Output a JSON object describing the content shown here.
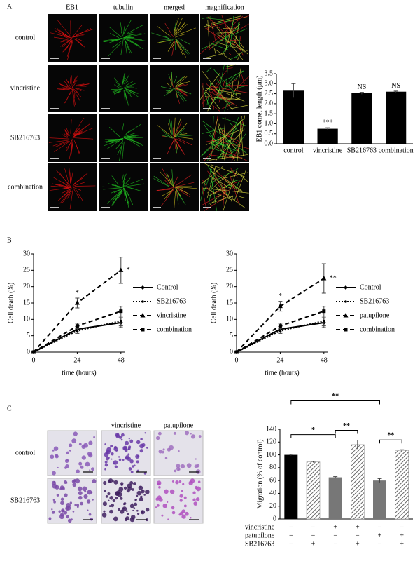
{
  "panel_labels": [
    "A",
    "B",
    "C"
  ],
  "panel_a_images": {
    "columns": [
      "EB1",
      "tubulin",
      "merged",
      "magnification"
    ],
    "rows": [
      "control",
      "vincristine",
      "SB216763",
      "combination"
    ]
  },
  "panel_c_images": {
    "columns": [
      "vincristine",
      "patupilone"
    ],
    "rows": [
      "control",
      "SB216763"
    ]
  },
  "chart_data": [
    {
      "type": "bar",
      "ylabel": "EB1 comet length (µm)",
      "categories": [
        "control",
        "vincristine",
        "SB216763",
        "combination"
      ],
      "values": [
        2.65,
        0.75,
        2.52,
        2.6
      ],
      "errors": [
        0.35,
        0.05,
        0.05,
        0.03
      ],
      "value_annotations": [
        null,
        "***",
        "NS",
        "NS"
      ],
      "color": "#000000",
      "ylim": [
        0,
        3.5
      ],
      "yticks": [
        {
          "value": 0,
          "label": "0.0"
        },
        {
          "value": 0.5,
          "label": "0.5"
        },
        {
          "value": 1,
          "label": "1.0"
        },
        {
          "value": 1.5,
          "label": "1.5"
        },
        {
          "value": 2,
          "label": "2.0"
        },
        {
          "value": 2.5,
          "label": "2.5"
        },
        {
          "value": 3,
          "label": "3.0"
        },
        {
          "value": 3.5,
          "label": "3.5"
        }
      ]
    },
    {
      "type": "line",
      "xlabel": "time (hours)",
      "ylabel": "Cell death (%)",
      "x": [
        0,
        24,
        48
      ],
      "xlim": [
        0,
        50
      ],
      "xticks": [
        0,
        24,
        48
      ],
      "ylim": [
        0,
        30
      ],
      "yticks": [
        0,
        5,
        10,
        15,
        20,
        25,
        30
      ],
      "series": [
        {
          "name": "Control",
          "color": "#000000",
          "dash": "solid",
          "marker": "diamond",
          "values": [
            0,
            7,
            9
          ],
          "errors": [
            0.3,
            0.8,
            1.5
          ],
          "annotations": [
            null,
            null,
            null
          ]
        },
        {
          "name": "SB216763",
          "color": "#000000",
          "dash": "dotted",
          "marker": "dot",
          "values": [
            0,
            6.5,
            9.5
          ],
          "errors": [
            0.3,
            0.8,
            1.5
          ],
          "annotations": [
            null,
            null,
            null
          ]
        },
        {
          "name": "vincristine",
          "color": "#000000",
          "dash": "dashed",
          "marker": "triangle",
          "values": [
            0,
            15,
            25
          ],
          "errors": [
            0.3,
            1.5,
            4
          ],
          "annotations": [
            null,
            "*",
            "*"
          ]
        },
        {
          "name": "combination",
          "color": "#000000",
          "dash": "dashed",
          "marker": "square",
          "values": [
            0,
            8,
            12.5
          ],
          "errors": [
            0.3,
            0.8,
            1.5
          ],
          "annotations": [
            null,
            null,
            null
          ]
        }
      ]
    },
    {
      "type": "line",
      "xlabel": "time (hours)",
      "ylabel": "Cell death (%)",
      "x": [
        0,
        24,
        48
      ],
      "xlim": [
        0,
        50
      ],
      "xticks": [
        0,
        24,
        48
      ],
      "ylim": [
        0,
        30
      ],
      "yticks": [
        0,
        5,
        10,
        15,
        20,
        25,
        30
      ],
      "series": [
        {
          "name": "Control",
          "color": "#000000",
          "dash": "solid",
          "marker": "diamond",
          "values": [
            0,
            7,
            9
          ],
          "errors": [
            0.3,
            0.8,
            1.5
          ],
          "annotations": [
            null,
            null,
            null
          ]
        },
        {
          "name": "SB216763",
          "color": "#000000",
          "dash": "dotted",
          "marker": "dot",
          "values": [
            0,
            6.5,
            9.5
          ],
          "errors": [
            0.3,
            0.8,
            1.5
          ],
          "annotations": [
            null,
            null,
            null
          ]
        },
        {
          "name": "patupilone",
          "color": "#000000",
          "dash": "dashed",
          "marker": "triangle",
          "values": [
            0,
            14,
            22.5
          ],
          "errors": [
            0.3,
            1.5,
            4.5
          ],
          "annotations": [
            null,
            "*",
            "**"
          ]
        },
        {
          "name": "combination",
          "color": "#000000",
          "dash": "dashed",
          "marker": "square",
          "values": [
            0,
            8,
            12.5
          ],
          "errors": [
            0.3,
            0.8,
            1.5
          ],
          "annotations": [
            null,
            null,
            null
          ]
        }
      ]
    },
    {
      "type": "bar",
      "ylabel": "Migration (% of control)",
      "values": [
        100,
        89,
        65,
        116,
        60,
        107
      ],
      "errors": [
        1,
        1,
        1,
        7,
        3,
        1
      ],
      "colors": [
        "#000000",
        "hatch",
        "#777777",
        "hatch",
        "#777777",
        "hatch"
      ],
      "ylim": [
        0,
        140
      ],
      "yticks": [
        0,
        20,
        40,
        60,
        80,
        100,
        120,
        140
      ],
      "conditions": [
        {
          "name": "vincristine",
          "marks": [
            "−",
            "−",
            "+",
            "+",
            "−",
            "−"
          ]
        },
        {
          "name": "patupilone",
          "marks": [
            "−",
            "−",
            "−",
            "−",
            "+",
            "+"
          ]
        },
        {
          "name": "SB216763",
          "marks": [
            "−",
            "+",
            "−",
            "+",
            "−",
            "+"
          ]
        }
      ],
      "brackets": [
        {
          "from": 0,
          "to": 4,
          "label": "**"
        },
        {
          "from": 0,
          "to": 2,
          "label": "*"
        },
        {
          "from": 2,
          "to": 3,
          "label": "**"
        },
        {
          "from": 4,
          "to": 5,
          "label": "**"
        }
      ]
    }
  ]
}
